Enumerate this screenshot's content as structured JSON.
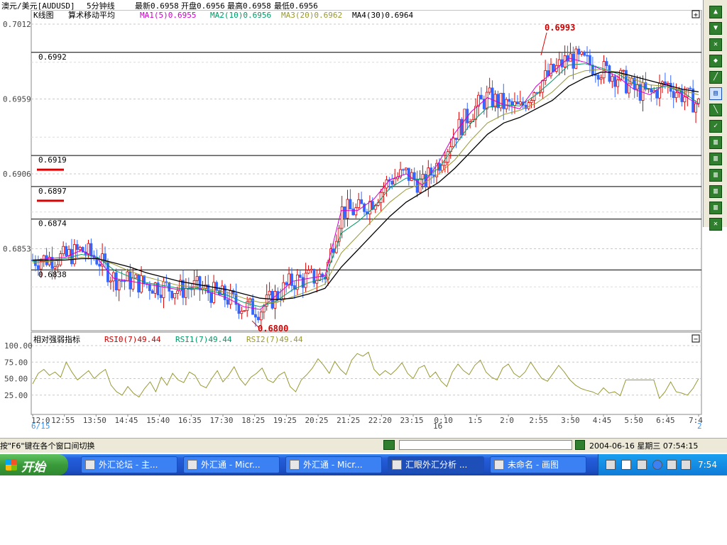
{
  "header": {
    "symbol": "澳元/美元[AUDUSD]",
    "period": "5分钟线",
    "latest": "最新0.6958",
    "open": "开盘0.6956",
    "high": "最高0.6958",
    "low": "最低0.6956"
  },
  "price_panel": {
    "title": "K线图",
    "indicator": "算术移动平均",
    "ma_labels": [
      {
        "text": "MA1(5)0.6955",
        "color": "#cc00cc"
      },
      {
        "text": "MA2(10)0.6956",
        "color": "#009966"
      },
      {
        "text": "MA3(20)0.6962",
        "color": "#999933"
      },
      {
        "text": "MA4(30)0.6964",
        "color": "#000000"
      }
    ],
    "y_ticks": [
      "0.7012",
      "0.6959",
      "0.6906",
      "0.6853"
    ],
    "h_lines": [
      "0.6992",
      "0.6919",
      "0.6897",
      "0.6874",
      "0.6838"
    ],
    "high_marker": "0.6993",
    "low_marker": "0.6800"
  },
  "rsi_panel": {
    "title": "相对强弱指标",
    "labels": [
      {
        "text": "RSI0(7)49.44",
        "color": "#cc0000"
      },
      {
        "text": "RSI1(7)49.44",
        "color": "#009966"
      },
      {
        "text": "RSI2(7)49.44",
        "color": "#999933"
      }
    ],
    "y_ticks": [
      "100.00",
      "75.00",
      "50.00",
      "25.00"
    ]
  },
  "x_axis": {
    "ticks": [
      "12:0",
      "12:55",
      "13:50",
      "14:45",
      "15:40",
      "16:35",
      "17:30",
      "18:25",
      "19:25",
      "20:25",
      "21:25",
      "22:20",
      "23:15",
      "0:10",
      "1:5",
      "2:0",
      "2:55",
      "3:50",
      "4:45",
      "5:50",
      "6:45",
      "7:4"
    ],
    "date_left": "6/15",
    "date_mid": "16",
    "date_right": "2"
  },
  "chart_data": {
    "type": "candlestick",
    "y_range": [
      0.6795,
      0.7015
    ],
    "rsi_range": [
      0,
      100
    ],
    "rsi_values": [
      42,
      58,
      64,
      55,
      60,
      52,
      75,
      60,
      48,
      55,
      62,
      50,
      58,
      64,
      40,
      30,
      25,
      38,
      28,
      22,
      35,
      45,
      30,
      52,
      40,
      58,
      48,
      44,
      60,
      55,
      40,
      36,
      50,
      62,
      45,
      55,
      68,
      50,
      40,
      52,
      58,
      66,
      48,
      44,
      55,
      60,
      38,
      30,
      48,
      56,
      66,
      80,
      70,
      58,
      76,
      64,
      56,
      78,
      88,
      84,
      90,
      64,
      55,
      62,
      56,
      64,
      74,
      58,
      50,
      66,
      70,
      52,
      60,
      46,
      38,
      60,
      72,
      62,
      56,
      70,
      78,
      60,
      52,
      48,
      66,
      72,
      58,
      52,
      60,
      75,
      62,
      50,
      46,
      58,
      70,
      60,
      48,
      40,
      35,
      32,
      30,
      26,
      36,
      28,
      30,
      24,
      48,
      48,
      48,
      48,
      48,
      48,
      20,
      30,
      45,
      30,
      28,
      25,
      35,
      50
    ],
    "ma_series": [
      {
        "color": "#cc00cc",
        "values": [
          0.6845,
          0.6846,
          0.6847,
          0.6852,
          0.6846,
          0.6832,
          0.683,
          0.6828,
          0.6826,
          0.6824,
          0.6826,
          0.6822,
          0.6818,
          0.6812,
          0.681,
          0.682,
          0.683,
          0.6832,
          0.6834,
          0.688,
          0.688,
          0.6888,
          0.6902,
          0.6906,
          0.6898,
          0.6914,
          0.6935,
          0.695,
          0.696,
          0.6955,
          0.6952,
          0.6968,
          0.6978,
          0.6988,
          0.6985,
          0.698,
          0.6975,
          0.6966,
          0.6962,
          0.697,
          0.6962,
          0.6955
        ]
      },
      {
        "color": "#009966",
        "values": [
          0.6844,
          0.6845,
          0.6846,
          0.6849,
          0.6847,
          0.6838,
          0.6833,
          0.6829,
          0.6827,
          0.6825,
          0.6825,
          0.6823,
          0.682,
          0.6815,
          0.6812,
          0.6816,
          0.6824,
          0.6829,
          0.6832,
          0.6864,
          0.6872,
          0.6882,
          0.6896,
          0.6903,
          0.6902,
          0.691,
          0.6926,
          0.6942,
          0.6953,
          0.6955,
          0.6954,
          0.6962,
          0.6972,
          0.6983,
          0.6984,
          0.6981,
          0.6977,
          0.697,
          0.6966,
          0.6968,
          0.6964,
          0.6956
        ]
      },
      {
        "color": "#999933",
        "values": [
          0.6843,
          0.6844,
          0.6845,
          0.6847,
          0.6846,
          0.6842,
          0.6837,
          0.6833,
          0.683,
          0.6827,
          0.6826,
          0.6824,
          0.6822,
          0.6818,
          0.6815,
          0.6815,
          0.6819,
          0.6823,
          0.6828,
          0.685,
          0.6862,
          0.6874,
          0.6886,
          0.6895,
          0.6899,
          0.6906,
          0.6916,
          0.693,
          0.6942,
          0.6948,
          0.6951,
          0.6956,
          0.6964,
          0.6975,
          0.6979,
          0.698,
          0.6978,
          0.6973,
          0.6969,
          0.6968,
          0.6965,
          0.6962
        ]
      },
      {
        "color": "#000000",
        "values": [
          0.6845,
          0.6845,
          0.6845,
          0.6846,
          0.6846,
          0.6843,
          0.684,
          0.6836,
          0.6833,
          0.683,
          0.6828,
          0.6826,
          0.6824,
          0.6821,
          0.6818,
          0.6817,
          0.6818,
          0.6821,
          0.6825,
          0.684,
          0.6852,
          0.6864,
          0.6876,
          0.6886,
          0.6893,
          0.69,
          0.691,
          0.6922,
          0.6934,
          0.6942,
          0.6946,
          0.6952,
          0.6958,
          0.6968,
          0.6974,
          0.6978,
          0.6978,
          0.6975,
          0.6972,
          0.6969,
          0.6966,
          0.6964
        ]
      }
    ]
  },
  "toolbar": {
    "buttons": [
      "▲",
      "▼",
      "✕",
      "◆",
      "╱",
      "▤",
      "╲",
      "✓",
      "▥",
      "▥",
      "▥",
      "▥",
      "▥",
      "✕"
    ]
  },
  "status": {
    "hint": "按\"F6\"键在各个窗口间切换",
    "datetime": "2004-06-16  星期三  07:54:15"
  },
  "taskbar": {
    "start_label": "开始",
    "tasks": [
      "外汇论坛 - 主...",
      "外汇通 - Micr...",
      "外汇通 - Micr...",
      "汇眼外汇分析 ...",
      "未命名 - 画图"
    ],
    "clock": "7:54"
  }
}
